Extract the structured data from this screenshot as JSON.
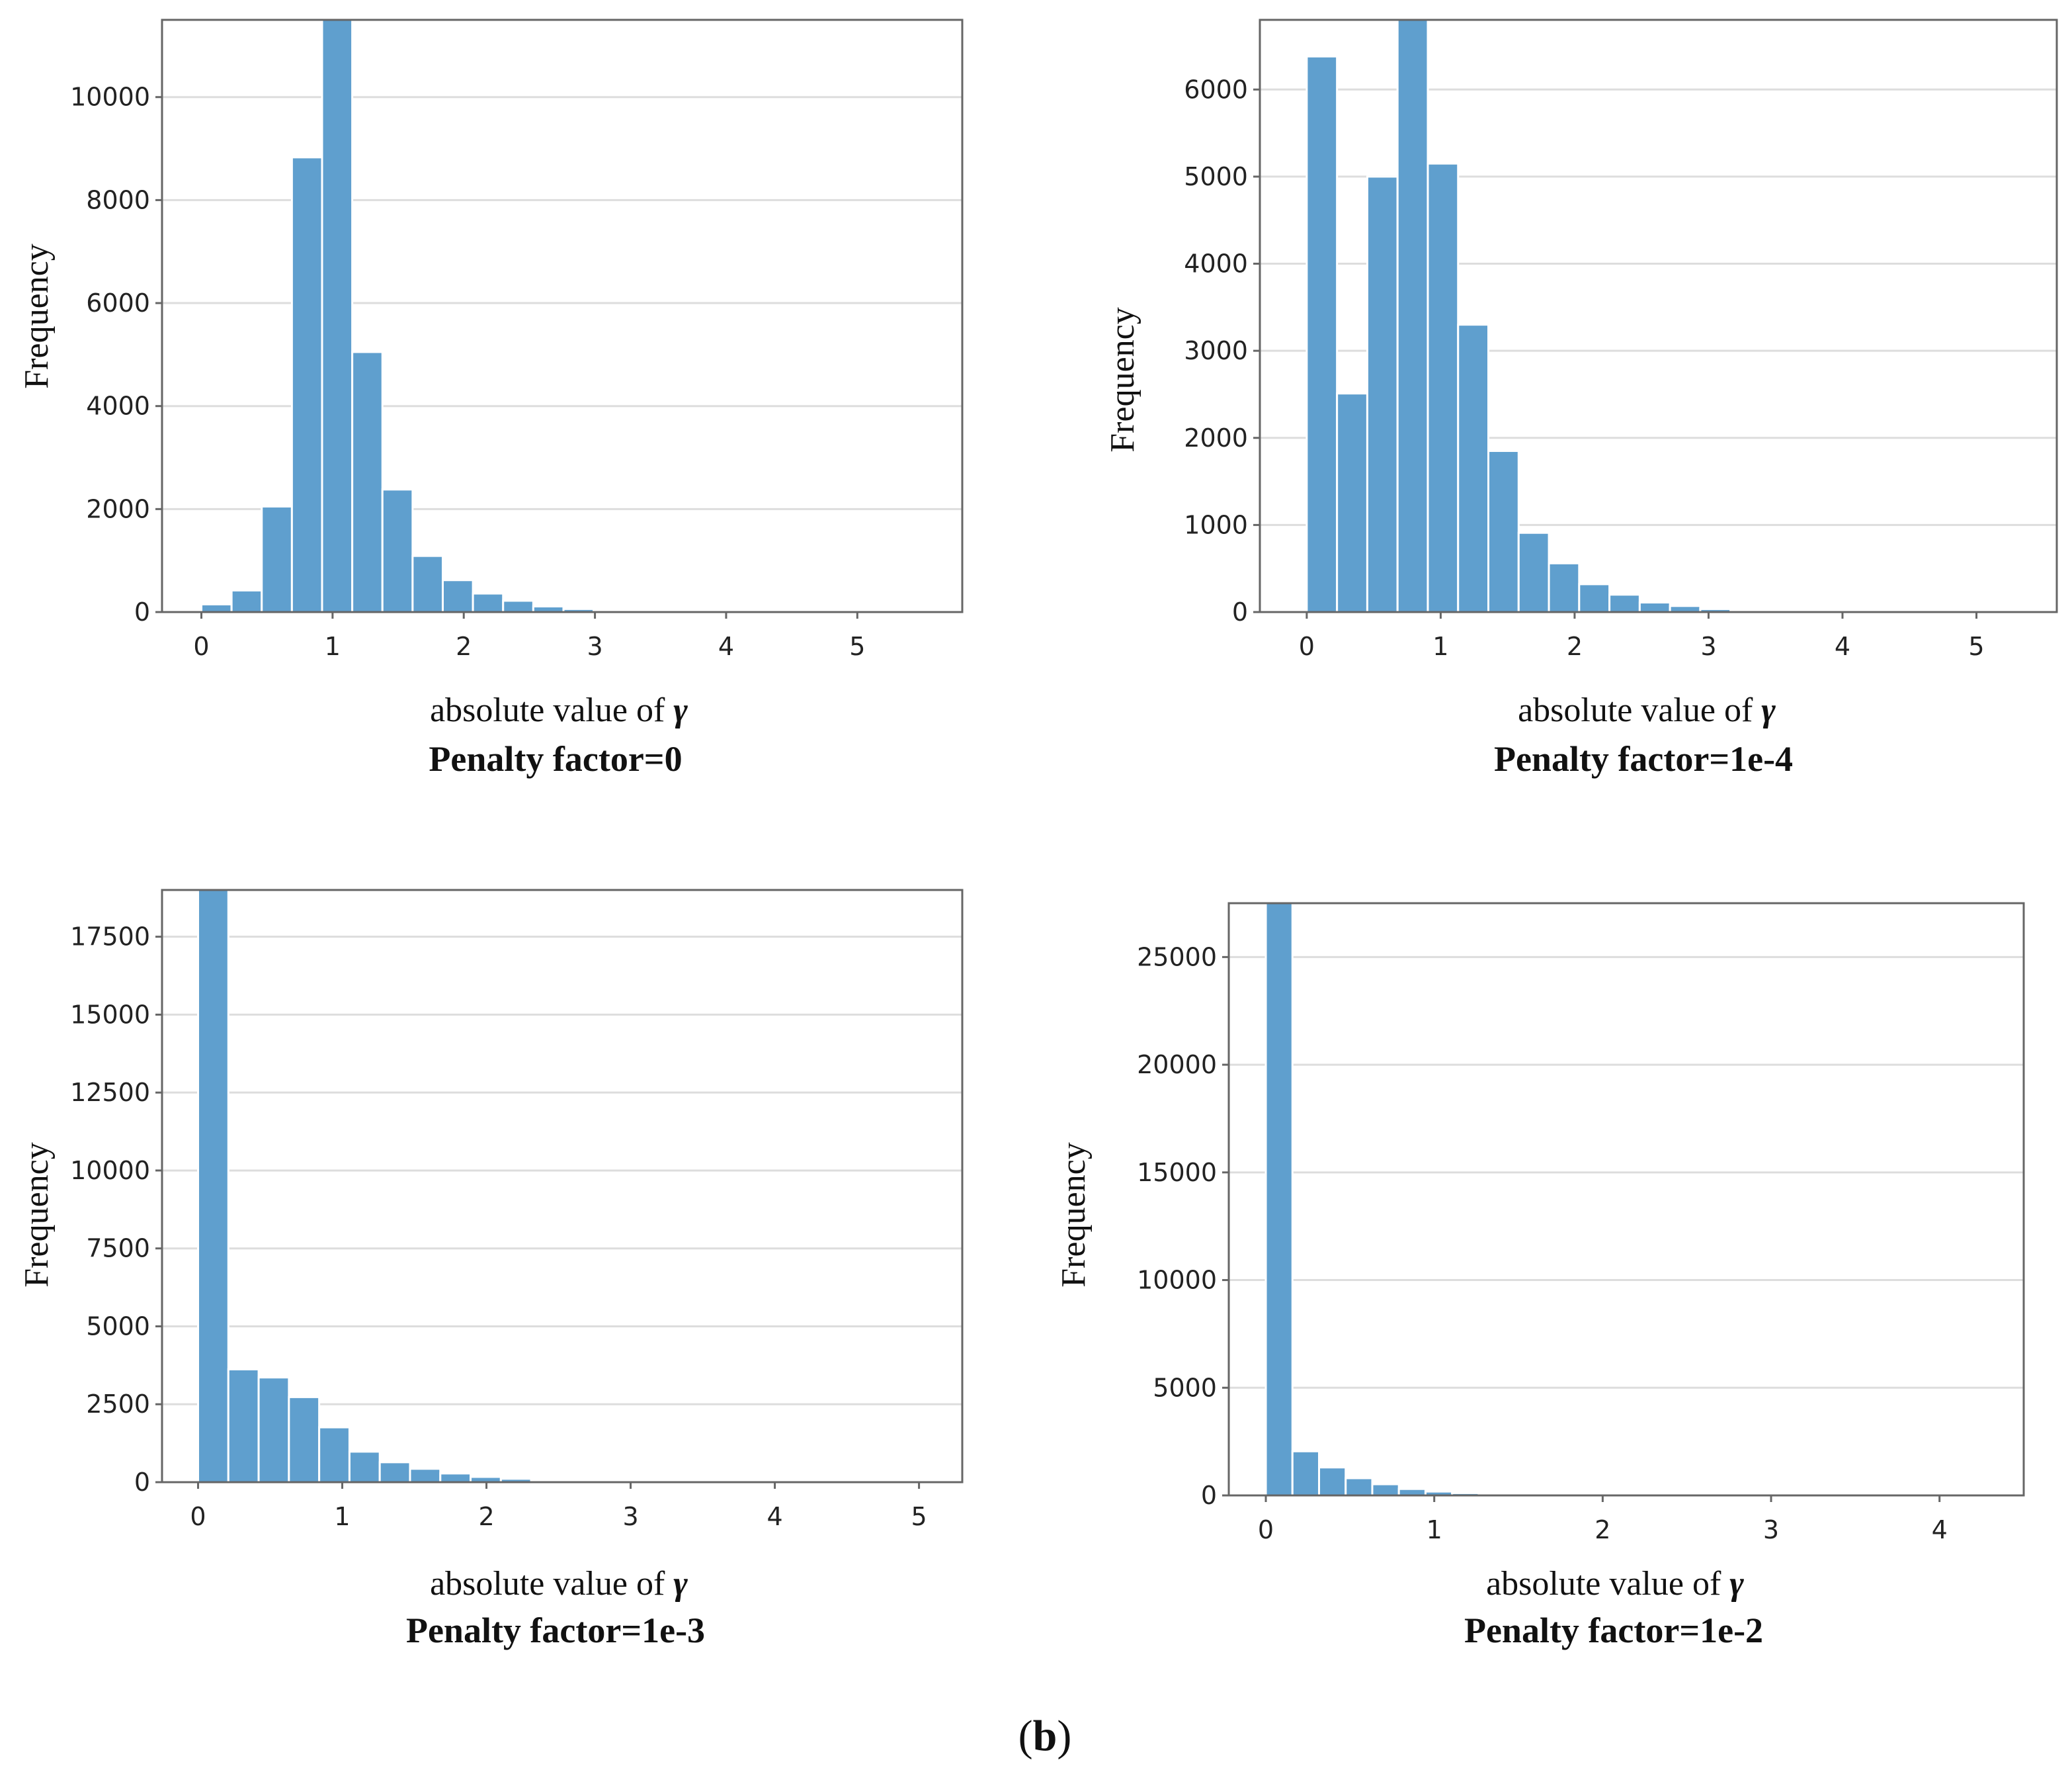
{
  "figure_label": {
    "open": "(",
    "letter": "b",
    "close": ")"
  },
  "chart_data": [
    {
      "type": "bar",
      "title": "Penalty factor=0",
      "xlabel": "absolute value of",
      "xlabel_symbol": "γ",
      "ylabel": "Frequency",
      "bar_color": "#5f9fce",
      "grid": true,
      "bin_width": 0.23,
      "xlim": [
        -0.3,
        5.8
      ],
      "ylim": [
        0,
        11500
      ],
      "xticks": [
        0,
        1,
        2,
        3,
        4,
        5
      ],
      "yticks": [
        0,
        2000,
        4000,
        6000,
        8000,
        10000
      ],
      "x": [
        0.0,
        0.23,
        0.46,
        0.69,
        0.92,
        1.15,
        1.38,
        1.61,
        1.84,
        2.07,
        2.3,
        2.53,
        2.76,
        2.99,
        3.22,
        3.45
      ],
      "values": [
        150,
        420,
        2050,
        8830,
        11500,
        5050,
        2380,
        1090,
        620,
        360,
        220,
        110,
        60,
        30,
        15,
        8
      ]
    },
    {
      "type": "bar",
      "title": "Penalty factor=1e-4",
      "xlabel": "absolute value of",
      "xlabel_symbol": "γ",
      "ylabel": "Frequency",
      "bar_color": "#5f9fce",
      "grid": true,
      "bin_width": 0.226,
      "xlim": [
        -0.35,
        5.6
      ],
      "ylim": [
        0,
        6800
      ],
      "xticks": [
        0,
        1,
        2,
        3,
        4,
        5
      ],
      "yticks": [
        0,
        1000,
        2000,
        3000,
        4000,
        5000,
        6000
      ],
      "x": [
        0.0,
        0.226,
        0.452,
        0.678,
        0.904,
        1.13,
        1.356,
        1.582,
        1.808,
        2.034,
        2.26,
        2.486,
        2.712,
        2.938,
        3.164
      ],
      "values": [
        6380,
        2510,
        5000,
        6800,
        5150,
        3300,
        1850,
        910,
        560,
        320,
        200,
        110,
        70,
        35,
        10
      ]
    },
    {
      "type": "bar",
      "title": "Penalty factor=1e-3",
      "xlabel": "absolute value of",
      "xlabel_symbol": "γ",
      "ylabel": "Frequency",
      "bar_color": "#5f9fce",
      "grid": true,
      "bin_width": 0.21,
      "xlim": [
        -0.25,
        5.3
      ],
      "ylim": [
        0,
        19000
      ],
      "xticks": [
        0,
        1,
        2,
        3,
        4,
        5
      ],
      "yticks": [
        0,
        2500,
        5000,
        7500,
        10000,
        12500,
        15000,
        17500
      ],
      "x": [
        0.0,
        0.21,
        0.42,
        0.63,
        0.84,
        1.05,
        1.26,
        1.47,
        1.68,
        1.89,
        2.1,
        2.31,
        2.52,
        2.73
      ],
      "values": [
        19000,
        3620,
        3360,
        2730,
        1760,
        980,
        640,
        430,
        280,
        170,
        110,
        60,
        30,
        15
      ]
    },
    {
      "type": "bar",
      "title": "Penalty factor=1e-2",
      "xlabel": "absolute value of",
      "xlabel_symbol": "γ",
      "ylabel": "Frequency",
      "bar_color": "#5f9fce",
      "grid": true,
      "bin_width": 0.158,
      "xlim": [
        -0.22,
        4.5
      ],
      "ylim": [
        0,
        27500
      ],
      "xticks": [
        0,
        1,
        2,
        3,
        4
      ],
      "yticks": [
        0,
        5000,
        10000,
        15000,
        20000,
        25000
      ],
      "x": [
        0.0,
        0.158,
        0.316,
        0.474,
        0.632,
        0.79,
        0.948,
        1.106,
        1.264,
        1.422,
        1.58
      ],
      "values": [
        27500,
        2050,
        1300,
        800,
        520,
        300,
        180,
        110,
        70,
        40,
        20
      ]
    }
  ]
}
